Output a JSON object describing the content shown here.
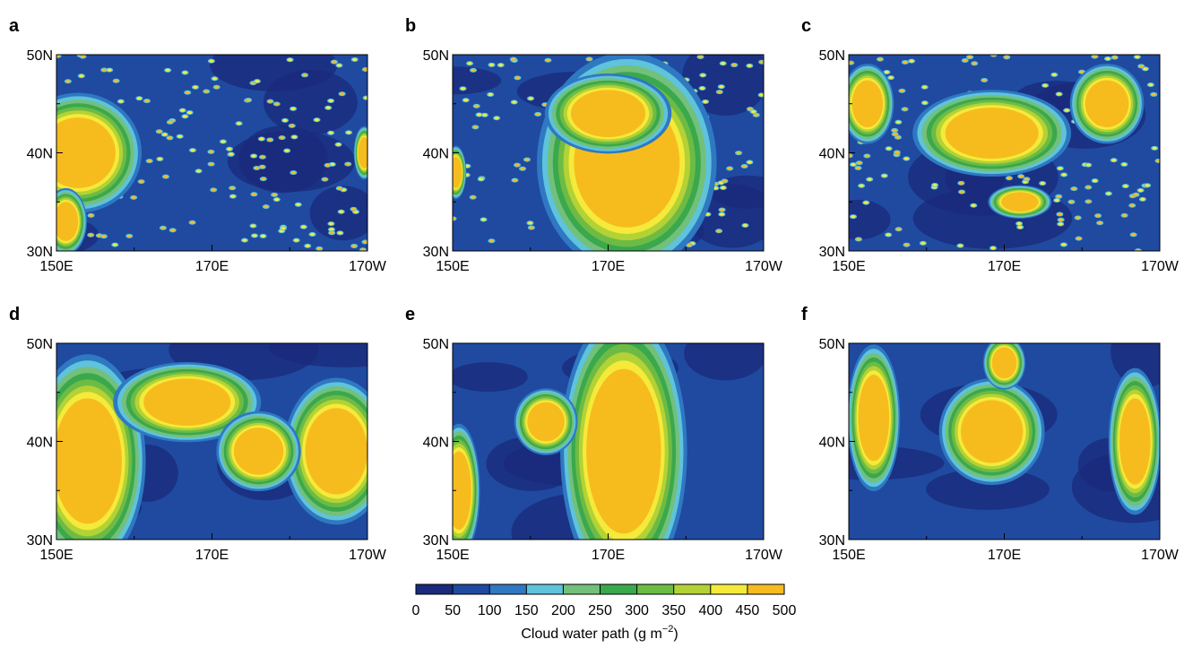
{
  "panels": [
    {
      "label": "a"
    },
    {
      "label": "b"
    },
    {
      "label": "c"
    },
    {
      "label": "d"
    },
    {
      "label": "e"
    },
    {
      "label": "f"
    }
  ],
  "lon_ticks": [
    "150E",
    "170E",
    "170W"
  ],
  "lat_ticks": [
    "50N",
    "40N",
    "30N"
  ],
  "colorbar": {
    "ticks": [
      0,
      50,
      100,
      150,
      200,
      250,
      300,
      350,
      400,
      450,
      500
    ],
    "colors": [
      "#1a2a7c",
      "#1f4aa0",
      "#2f78c2",
      "#5ec3db",
      "#72c07a",
      "#3aa84c",
      "#6dbb45",
      "#b3d235",
      "#f5ea3a",
      "#f6bc1e"
    ],
    "label_text": "Cloud water path (g m",
    "label_exponent": "−2",
    "label_close": ")"
  }
}
